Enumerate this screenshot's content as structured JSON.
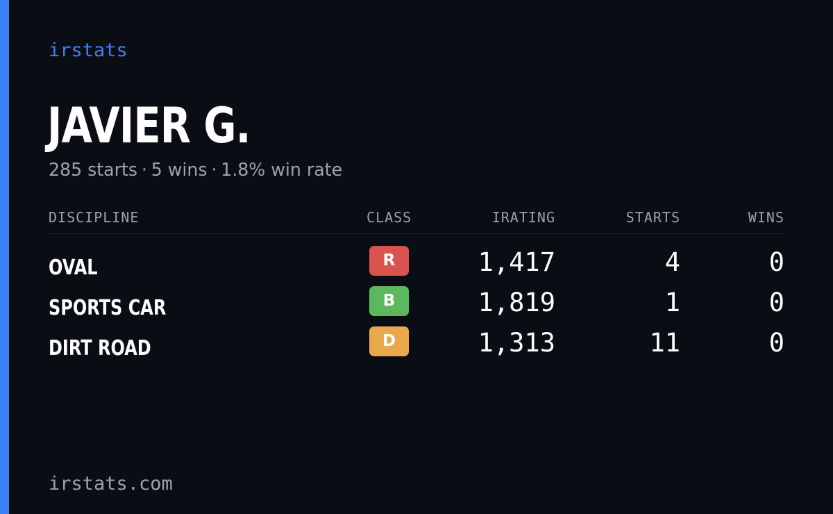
{
  "brand": "irstats",
  "player": {
    "name": "JAVIER G.",
    "starts_text": "285 starts",
    "wins_text": "5 wins",
    "win_rate_text": "1.8% win rate",
    "separator": "·"
  },
  "table": {
    "headers": {
      "discipline": "DISCIPLINE",
      "class": "CLASS",
      "irating": "IRATING",
      "starts": "STARTS",
      "wins": "WINS"
    },
    "rows": [
      {
        "discipline": "OVAL",
        "class": "R",
        "class_color": "#d9534f",
        "irating": "1,417",
        "starts": "4",
        "wins": "0"
      },
      {
        "discipline": "SPORTS CAR",
        "class": "B",
        "class_color": "#5cb85c",
        "irating": "1,819",
        "starts": "1",
        "wins": "0"
      },
      {
        "discipline": "DIRT ROAD",
        "class": "D",
        "class_color": "#e9a84c",
        "irating": "1,313",
        "starts": "11",
        "wins": "0"
      }
    ]
  },
  "footer": {
    "url": "irstats.com"
  },
  "colors": {
    "background": "#0a0d14",
    "accent": "#3b82f6",
    "muted_text": "#9ca3af",
    "text": "#ffffff"
  }
}
